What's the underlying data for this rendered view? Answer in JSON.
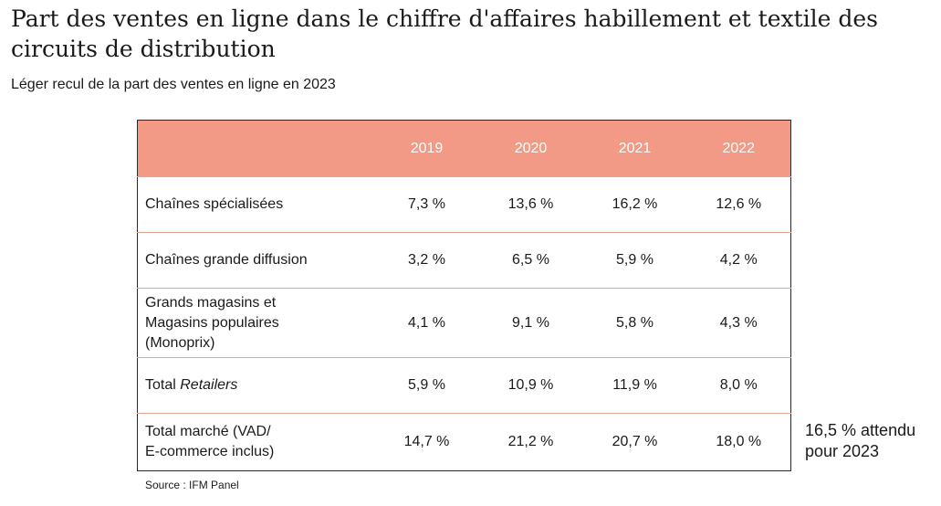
{
  "title": "Part des ventes en ligne dans le chiffre d'affaires habillement et textile des circuits de distribution",
  "subtitle": "Léger recul de la part des ventes en ligne en 2023",
  "table": {
    "header": [
      "",
      "2019",
      "2020",
      "2021",
      "2022"
    ],
    "rows": [
      {
        "label_lines": [
          "Chaînes spécialisées"
        ],
        "values": [
          "7,3 %",
          "13,6 %",
          "16,2 %",
          "12,6 %"
        ]
      },
      {
        "label_lines": [
          "Chaînes grande diffusion"
        ],
        "values": [
          "3,2 %",
          "6,5 %",
          "5,9 %",
          "4,2 %"
        ]
      },
      {
        "label_lines": [
          "Grands magasins et",
          "Magasins populaires",
          "(Monoprix)"
        ],
        "values": [
          "4,1 %",
          "9,1 %",
          "5,8 %",
          "4,3 %"
        ]
      },
      {
        "label_prefix": "Total ",
        "label_italic": "Retailers",
        "values": [
          "5,9 %",
          "10,9 %",
          "11,9 %",
          "8,0 %"
        ]
      },
      {
        "label_lines": [
          "Total marché (VAD/",
          "E-commerce inclus)"
        ],
        "values": [
          "14,7 %",
          "21,2 %",
          "20,7 %",
          "18,0 %"
        ]
      }
    ]
  },
  "note_lines": [
    "16,5 % attendu",
    "pour 2023"
  ],
  "source": "Source : IFM Panel",
  "colors": {
    "header_bg": "#f29a86",
    "header_text": "#ffffff",
    "row_divider": "#e6a48e"
  }
}
